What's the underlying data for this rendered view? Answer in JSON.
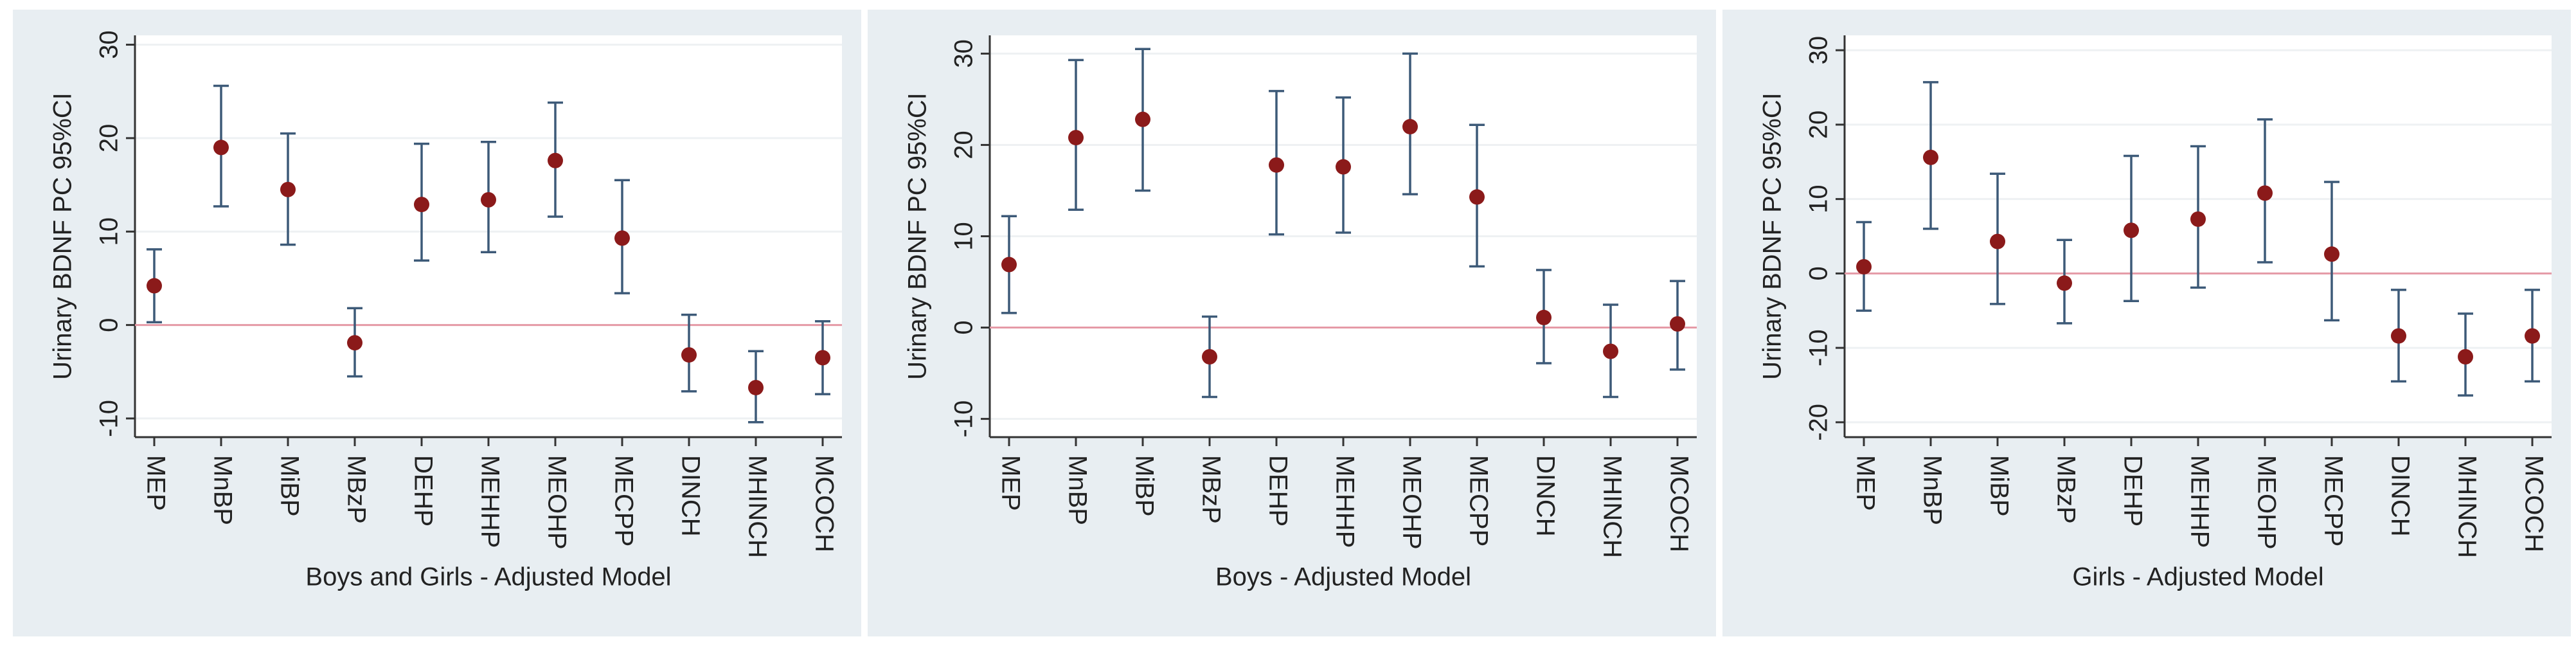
{
  "chart_data": [
    {
      "type": "errorbar",
      "xlabel": "Boys and Girls - Adjusted Model",
      "ylabel": "Urinary BDNF PC 95%CI",
      "categories": [
        "MEP",
        "MnBP",
        "MiBP",
        "MBzP",
        "DEHP",
        "MEHHP",
        "MEOHP",
        "MECPP",
        "DINCH",
        "MHINCH",
        "MCOCH"
      ],
      "series": [
        {
          "color": "#8b1a1a",
          "bar_color": "#3d5a78",
          "values": [
            4.2,
            19,
            14.5,
            -1.9,
            12.9,
            13.4,
            17.6,
            9.3,
            -3.2,
            -6.7,
            -3.5
          ],
          "lower": [
            0.3,
            12.7,
            8.6,
            -5.5,
            6.9,
            7.8,
            11.6,
            3.4,
            -7.1,
            -10.4,
            -7.4
          ],
          "upper": [
            8.1,
            25.6,
            20.5,
            1.8,
            19.4,
            19.6,
            23.8,
            15.5,
            1.1,
            -2.8,
            0.4
          ]
        }
      ],
      "ylim": [
        -12,
        31
      ],
      "yticks": [
        -10,
        0,
        10,
        20,
        30
      ],
      "refline": 0,
      "refline_color": "#e59aa6",
      "grid": true
    },
    {
      "type": "errorbar",
      "xlabel": "Boys - Adjusted Model",
      "ylabel": "Urinary BDNF PC 95%CI",
      "categories": [
        "MEP",
        "MnBP",
        "MiBP",
        "MBzP",
        "DEHP",
        "MEHHP",
        "MEOHP",
        "MECPP",
        "DINCH",
        "MHINCH",
        "MCOCH"
      ],
      "series": [
        {
          "color": "#8b1a1a",
          "bar_color": "#3d5a78",
          "values": [
            6.9,
            20.8,
            22.8,
            -3.2,
            17.8,
            17.6,
            22,
            14.3,
            1.1,
            -2.6,
            0.4
          ],
          "lower": [
            1.6,
            12.9,
            15,
            -7.6,
            10.2,
            10.4,
            14.6,
            6.7,
            -3.9,
            -7.6,
            -4.6
          ],
          "upper": [
            12.2,
            29.3,
            30.5,
            1.2,
            25.9,
            25.2,
            30,
            22.2,
            6.3,
            2.5,
            5.1
          ]
        }
      ],
      "ylim": [
        -12,
        32
      ],
      "yticks": [
        -10,
        0,
        10,
        20,
        30
      ],
      "refline": 0,
      "refline_color": "#e59aa6",
      "grid": true
    },
    {
      "type": "errorbar",
      "xlabel": "Girls - Adjusted Model",
      "ylabel": "Urinary BDNF PC 95%CI",
      "categories": [
        "MEP",
        "MnBP",
        "MiBP",
        "MBzP",
        "DEHP",
        "MEHHP",
        "MEOHP",
        "MECPP",
        "DINCH",
        "MHINCH",
        "MCOCH"
      ],
      "series": [
        {
          "color": "#8b1a1a",
          "bar_color": "#3d5a78",
          "values": [
            0.9,
            15.6,
            4.3,
            -1.3,
            5.8,
            7.3,
            10.8,
            2.6,
            -8.4,
            -11.2,
            -8.4
          ],
          "lower": [
            -5,
            6,
            -4.1,
            -6.7,
            -3.7,
            -1.9,
            1.5,
            -6.3,
            -14.5,
            -16.4,
            -14.5
          ],
          "upper": [
            6.9,
            25.7,
            13.4,
            4.5,
            15.8,
            17.1,
            20.7,
            12.3,
            -2.2,
            -5.4,
            -2.2
          ]
        }
      ],
      "ylim": [
        -22,
        32
      ],
      "yticks": [
        -20,
        -10,
        0,
        10,
        20,
        30
      ],
      "refline": 0,
      "refline_color": "#e59aa6",
      "grid": true
    }
  ]
}
